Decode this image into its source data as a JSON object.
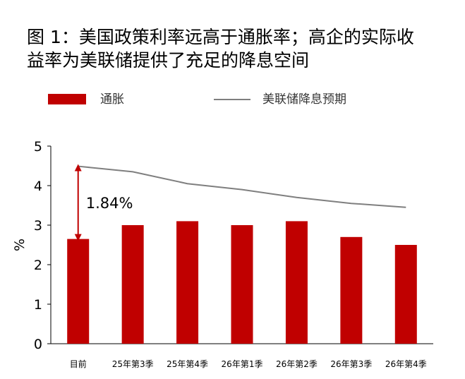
{
  "title_lines": [
    "图 1：美国政策利率远高于通胀率；高企的实际收",
    "益率为美联储提供了充足的降息空间"
  ],
  "legend": {
    "bar_label": "通胀",
    "line_label": "美联储降息预期"
  },
  "colors": {
    "bar": "#c00000",
    "line": "#7f7f7f",
    "arrow": "#c00000"
  },
  "chart_data": {
    "type": "bar",
    "categories": [
      "目前",
      "25年第3季",
      "25年第4季",
      "26年第1季",
      "26年第2季",
      "26年第3季",
      "26年第4季"
    ],
    "series": [
      {
        "name": "通胀",
        "type": "bar",
        "values": [
          2.65,
          3.0,
          3.1,
          3.0,
          3.1,
          2.7,
          2.5
        ]
      },
      {
        "name": "美联储降息预期",
        "type": "line",
        "values": [
          4.49,
          4.35,
          4.05,
          3.9,
          3.7,
          3.55,
          3.45
        ]
      }
    ],
    "ylabel": "%",
    "ylim": [
      0,
      5
    ],
    "yticks": [
      0,
      1,
      2,
      3,
      4,
      5
    ],
    "annotation": {
      "text": "1.84%",
      "category_index": 0,
      "from": 2.65,
      "to": 4.49
    },
    "grid": false,
    "legend_position": "top"
  }
}
